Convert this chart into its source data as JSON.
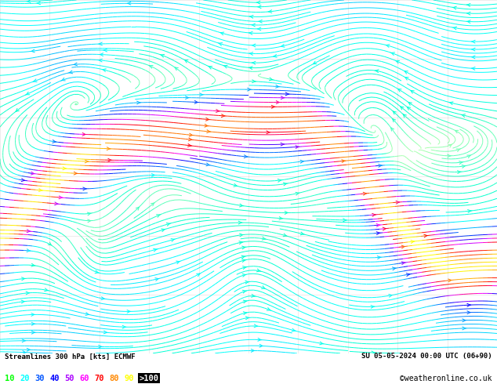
{
  "title_left": "Streamlines 300 hPa [kts] ECMWF",
  "title_right": "SU 05-05-2024 00:00 UTC (06+90)",
  "watermark": "©weatheronline.co.uk",
  "legend_values": [
    10,
    20,
    30,
    40,
    50,
    60,
    70,
    80,
    90
  ],
  "legend_label_gt": ">100",
  "background_color": "#ffffff",
  "fig_width": 6.34,
  "fig_height": 4.9,
  "dpi": 100,
  "colormap_colors": [
    "#aaffaa",
    "#00ffcc",
    "#00ffff",
    "#00aaff",
    "#0055ff",
    "#0000ff",
    "#aa00ff",
    "#ff00ff",
    "#ff0055",
    "#ff0000",
    "#ff5500",
    "#ffaa00",
    "#ffff00"
  ],
  "legend_colors": [
    "#00ff00",
    "#00ffff",
    "#0055ff",
    "#0000ff",
    "#aa00ff",
    "#ff00ff",
    "#ff0000",
    "#ff8800",
    "#ffff00"
  ]
}
